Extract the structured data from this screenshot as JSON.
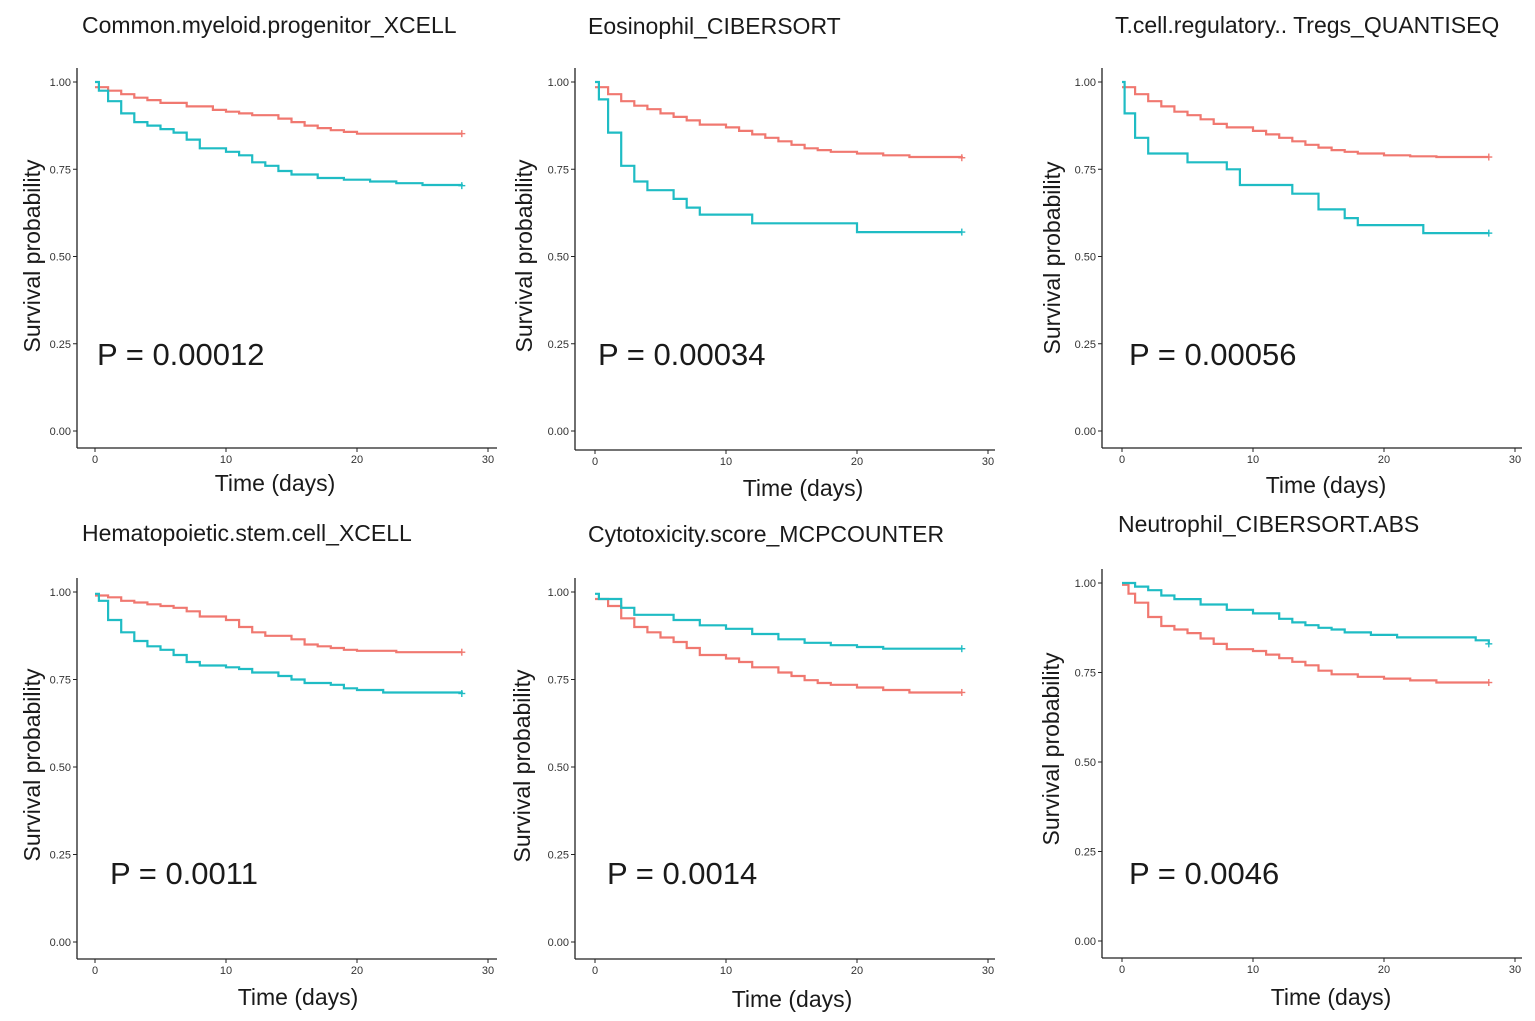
{
  "colors": {
    "high": "#f07870",
    "low": "#1fbcc4"
  },
  "chart_data": [
    {
      "type": "line",
      "title": "Common.myeloid.progenitor_XCELL",
      "xlabel": "Time (days)",
      "ylabel": "Survival probability",
      "xlim": [
        0,
        30
      ],
      "ylim": [
        0,
        1
      ],
      "xticks": [
        "0",
        "10",
        "20",
        "30"
      ],
      "yticks": [
        "0.00",
        "0.25",
        "0.50",
        "0.75",
        "1.00"
      ],
      "annotation": "P = 0.00012",
      "series": [
        {
          "name": "red",
          "x": [
            0,
            1,
            2,
            3,
            4,
            5,
            7,
            9,
            10,
            11,
            12,
            14,
            15,
            16,
            17,
            18,
            19,
            20,
            28
          ],
          "y": [
            0.985,
            0.975,
            0.965,
            0.955,
            0.948,
            0.94,
            0.93,
            0.92,
            0.915,
            0.91,
            0.905,
            0.895,
            0.885,
            0.875,
            0.868,
            0.862,
            0.857,
            0.852,
            0.852
          ]
        },
        {
          "name": "teal",
          "x": [
            0,
            0.3,
            1,
            2,
            3,
            4,
            5,
            6,
            7,
            8,
            10,
            11,
            12,
            13,
            14,
            15,
            17,
            19,
            21,
            23,
            25,
            28
          ],
          "y": [
            1.0,
            0.975,
            0.945,
            0.91,
            0.885,
            0.875,
            0.865,
            0.855,
            0.835,
            0.81,
            0.8,
            0.79,
            0.77,
            0.76,
            0.745,
            0.735,
            0.725,
            0.72,
            0.715,
            0.71,
            0.705,
            0.703
          ]
        }
      ]
    },
    {
      "type": "line",
      "title": "Eosinophil_CIBERSORT",
      "xlabel": "Time (days)",
      "ylabel": "Survival probability",
      "xlim": [
        0,
        30
      ],
      "ylim": [
        0,
        1
      ],
      "xticks": [
        "0",
        "10",
        "20",
        "30"
      ],
      "yticks": [
        "0.00",
        "0.25",
        "0.50",
        "0.75",
        "1.00"
      ],
      "annotation": "P = 0.00034",
      "series": [
        {
          "name": "red",
          "x": [
            0,
            1,
            2,
            3,
            4,
            5,
            6,
            7,
            8,
            10,
            11,
            12,
            13,
            14,
            15,
            16,
            17,
            18,
            20,
            22,
            24,
            28
          ],
          "y": [
            0.985,
            0.965,
            0.945,
            0.932,
            0.922,
            0.91,
            0.9,
            0.89,
            0.878,
            0.87,
            0.86,
            0.85,
            0.84,
            0.83,
            0.82,
            0.81,
            0.805,
            0.8,
            0.795,
            0.79,
            0.785,
            0.783
          ]
        },
        {
          "name": "teal",
          "x": [
            0,
            0.3,
            1,
            2,
            3,
            4,
            6,
            7,
            8,
            12,
            20,
            28
          ],
          "y": [
            1.0,
            0.95,
            0.855,
            0.76,
            0.715,
            0.69,
            0.665,
            0.64,
            0.62,
            0.595,
            0.57,
            0.57
          ]
        }
      ]
    },
    {
      "type": "line",
      "title": "T.cell.regulatory.. Tregs_QUANTISEQ",
      "xlabel": "Time (days)",
      "ylabel": "Survival probability",
      "xlim": [
        0,
        30
      ],
      "ylim": [
        0,
        1
      ],
      "xticks": [
        "0",
        "10",
        "20",
        "30"
      ],
      "yticks": [
        "0.00",
        "0.25",
        "0.50",
        "0.75",
        "1.00"
      ],
      "annotation": "P = 0.00056",
      "series": [
        {
          "name": "red",
          "x": [
            0,
            1,
            2,
            3,
            4,
            5,
            6,
            7,
            8,
            10,
            11,
            12,
            13,
            14,
            15,
            16,
            17,
            18,
            20,
            22,
            24,
            28
          ],
          "y": [
            0.985,
            0.965,
            0.945,
            0.93,
            0.915,
            0.905,
            0.893,
            0.88,
            0.87,
            0.86,
            0.85,
            0.84,
            0.83,
            0.82,
            0.812,
            0.805,
            0.8,
            0.795,
            0.79,
            0.787,
            0.785,
            0.785
          ]
        },
        {
          "name": "teal",
          "x": [
            0,
            0.2,
            1,
            2,
            5,
            8,
            9,
            13,
            15,
            17,
            18,
            23,
            28
          ],
          "y": [
            1.0,
            0.91,
            0.84,
            0.795,
            0.77,
            0.75,
            0.705,
            0.68,
            0.635,
            0.61,
            0.59,
            0.567,
            0.567
          ]
        }
      ]
    },
    {
      "type": "line",
      "title": "Hematopoietic.stem.cell_XCELL",
      "xlabel": "Time (days)",
      "ylabel": "Survival probability",
      "xlim": [
        0,
        30
      ],
      "ylim": [
        0,
        1
      ],
      "xticks": [
        "0",
        "10",
        "20",
        "30"
      ],
      "yticks": [
        "0.00",
        "0.25",
        "0.50",
        "0.75",
        "1.00"
      ],
      "annotation": "P = 0.0011",
      "series": [
        {
          "name": "red",
          "x": [
            0,
            1,
            2,
            3,
            4,
            5,
            6,
            7,
            8,
            10,
            11,
            12,
            13,
            15,
            16,
            17,
            18,
            19,
            20,
            23,
            28
          ],
          "y": [
            0.99,
            0.985,
            0.975,
            0.97,
            0.965,
            0.96,
            0.955,
            0.945,
            0.93,
            0.92,
            0.9,
            0.885,
            0.875,
            0.865,
            0.85,
            0.845,
            0.84,
            0.835,
            0.832,
            0.828,
            0.828
          ]
        },
        {
          "name": "teal",
          "x": [
            0,
            0.3,
            1,
            2,
            3,
            4,
            5,
            6,
            7,
            8,
            10,
            11,
            12,
            14,
            15,
            16,
            18,
            19,
            20,
            22,
            28
          ],
          "y": [
            0.995,
            0.975,
            0.92,
            0.885,
            0.86,
            0.845,
            0.835,
            0.82,
            0.8,
            0.79,
            0.785,
            0.78,
            0.77,
            0.76,
            0.75,
            0.74,
            0.735,
            0.725,
            0.72,
            0.713,
            0.71
          ]
        }
      ]
    },
    {
      "type": "line",
      "title": "Cytotoxicity.score_MCPCOUNTER",
      "xlabel": "Time (days)",
      "ylabel": "Survival probability",
      "xlim": [
        0,
        30
      ],
      "ylim": [
        0,
        1
      ],
      "xticks": [
        "0",
        "10",
        "20",
        "30"
      ],
      "yticks": [
        "0.00",
        "0.25",
        "0.50",
        "0.75",
        "1.00"
      ],
      "annotation": "P = 0.0014",
      "series": [
        {
          "name": "red",
          "x": [
            0,
            1,
            2,
            3,
            4,
            5,
            6,
            7,
            8,
            10,
            11,
            12,
            14,
            15,
            16,
            17,
            18,
            20,
            22,
            24,
            28
          ],
          "y": [
            0.98,
            0.96,
            0.925,
            0.9,
            0.885,
            0.87,
            0.857,
            0.84,
            0.82,
            0.81,
            0.8,
            0.785,
            0.77,
            0.76,
            0.748,
            0.74,
            0.735,
            0.727,
            0.72,
            0.713,
            0.713
          ]
        },
        {
          "name": "teal",
          "x": [
            0,
            0.3,
            2,
            3,
            6,
            8,
            10,
            12,
            14,
            16,
            18,
            20,
            22,
            28
          ],
          "y": [
            0.995,
            0.98,
            0.955,
            0.935,
            0.92,
            0.905,
            0.895,
            0.88,
            0.865,
            0.855,
            0.848,
            0.843,
            0.838,
            0.838
          ]
        }
      ]
    },
    {
      "type": "line",
      "title": "Neutrophil_CIBERSORT.ABS",
      "xlabel": "Time (days)",
      "ylabel": "Survival probability",
      "xlim": [
        0,
        30
      ],
      "ylim": [
        0,
        1
      ],
      "xticks": [
        "0",
        "10",
        "20",
        "30"
      ],
      "yticks": [
        "0.00",
        "0.25",
        "0.50",
        "0.75",
        "1.00"
      ],
      "annotation": "P = 0.0046",
      "series": [
        {
          "name": "red",
          "x": [
            0,
            0.5,
            1,
            2,
            3,
            4,
            5,
            6,
            7,
            8,
            10,
            11,
            12,
            13,
            14,
            15,
            16,
            18,
            20,
            22,
            24,
            28
          ],
          "y": [
            0.995,
            0.97,
            0.945,
            0.905,
            0.88,
            0.87,
            0.86,
            0.845,
            0.83,
            0.815,
            0.81,
            0.8,
            0.79,
            0.78,
            0.77,
            0.755,
            0.745,
            0.738,
            0.733,
            0.728,
            0.722,
            0.722
          ]
        },
        {
          "name": "teal",
          "x": [
            0,
            1,
            2,
            3,
            4,
            6,
            8,
            10,
            12,
            13,
            14,
            15,
            16,
            17,
            19,
            21,
            24,
            27,
            28
          ],
          "y": [
            1.0,
            0.99,
            0.98,
            0.965,
            0.955,
            0.94,
            0.925,
            0.915,
            0.9,
            0.89,
            0.882,
            0.875,
            0.87,
            0.862,
            0.855,
            0.848,
            0.848,
            0.84,
            0.83
          ]
        }
      ]
    }
  ]
}
